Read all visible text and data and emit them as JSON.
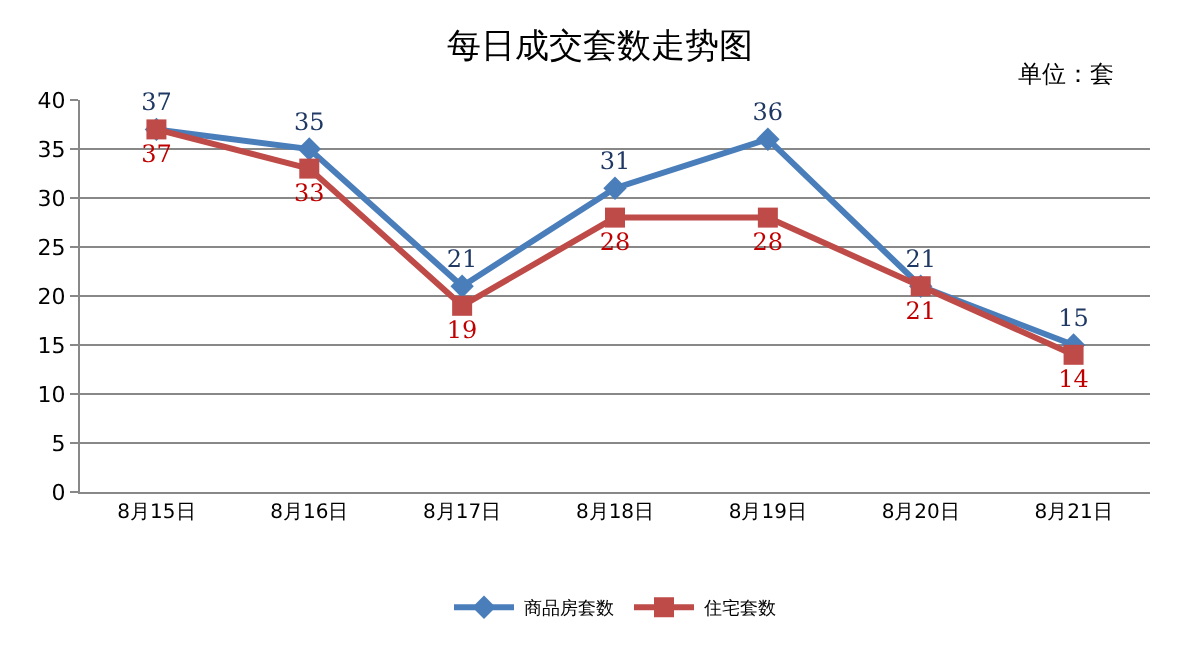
{
  "chart_data": {
    "type": "line",
    "title": "每日成交套数走势图",
    "annotations": [
      "单位：套"
    ],
    "categories": [
      "8月15日",
      "8月16日",
      "8月17日",
      "8月18日",
      "8月19日",
      "8月20日",
      "8月21日"
    ],
    "series": [
      {
        "name": "商品房套数",
        "color": "#4a7ebb",
        "marker": "diamond",
        "values": [
          37,
          35,
          21,
          31,
          36,
          21,
          15
        ]
      },
      {
        "name": "住宅套数",
        "color": "#be4b48",
        "marker": "square",
        "values": [
          37,
          33,
          19,
          28,
          28,
          21,
          14
        ]
      }
    ],
    "ylim": [
      0,
      40
    ],
    "yticks": [
      0,
      5,
      10,
      15,
      20,
      25,
      30,
      35,
      40
    ],
    "grid": "y",
    "legend": "bottom",
    "data_labels": true,
    "line_style": "solid"
  }
}
